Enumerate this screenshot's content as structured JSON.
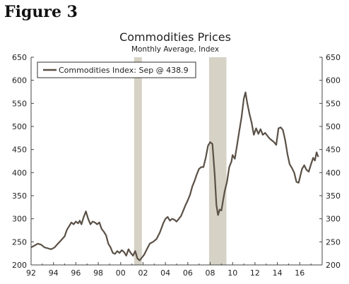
{
  "figure_label": "Figure 3",
  "chart_data": {
    "type": "line",
    "title": "Commodities Prices",
    "subtitle": "Monthly Average, Index",
    "xlabel": "",
    "ylabel": "",
    "xlim": [
      1992,
      2018
    ],
    "ylim": [
      200,
      650
    ],
    "y_ticks": [
      200,
      250,
      300,
      350,
      400,
      450,
      500,
      550,
      600,
      650
    ],
    "x_ticks": [
      {
        "year": 1992,
        "label": "92"
      },
      {
        "year": 1994,
        "label": "94"
      },
      {
        "year": 1996,
        "label": "96"
      },
      {
        "year": 1998,
        "label": "98"
      },
      {
        "year": 2000,
        "label": "00"
      },
      {
        "year": 2002,
        "label": "02"
      },
      {
        "year": 2004,
        "label": "04"
      },
      {
        "year": 2006,
        "label": "06"
      },
      {
        "year": 2008,
        "label": "08"
      },
      {
        "year": 2010,
        "label": "10"
      },
      {
        "year": 2012,
        "label": "12"
      },
      {
        "year": 2014,
        "label": "14"
      },
      {
        "year": 2016,
        "label": "16"
      }
    ],
    "dual_y_axis": true,
    "grid": false,
    "legend_position": "top-left",
    "line_color": "#5a5046",
    "recession_color": "#d6d2c6",
    "recessions": [
      [
        2001.2,
        2001.9
      ],
      [
        2007.9,
        2009.45
      ]
    ],
    "series": [
      {
        "name": "Commodities Index: Sep @ 438.9",
        "x": [
          1992.0,
          1992.3,
          1992.6,
          1992.9,
          1993.2,
          1993.5,
          1993.8,
          1994.1,
          1994.4,
          1994.7,
          1995.0,
          1995.2,
          1995.4,
          1995.6,
          1995.8,
          1996.0,
          1996.2,
          1996.35,
          1996.5,
          1996.7,
          1996.9,
          1997.1,
          1997.3,
          1997.5,
          1997.7,
          1997.9,
          1998.1,
          1998.3,
          1998.5,
          1998.7,
          1998.9,
          1999.1,
          1999.3,
          1999.5,
          1999.7,
          1999.9,
          2000.1,
          2000.3,
          2000.5,
          2000.7,
          2000.9,
          2001.1,
          2001.3,
          2001.5,
          2001.7,
          2001.9,
          2002.1,
          2002.3,
          2002.6,
          2002.9,
          2003.2,
          2003.5,
          2003.8,
          2004.0,
          2004.2,
          2004.4,
          2004.6,
          2004.8,
          2005.0,
          2005.2,
          2005.4,
          2005.6,
          2005.8,
          2006.0,
          2006.2,
          2006.4,
          2006.6,
          2006.8,
          2007.0,
          2007.2,
          2007.4,
          2007.6,
          2007.8,
          2008.0,
          2008.2,
          2008.4,
          2008.55,
          2008.7,
          2008.85,
          2009.0,
          2009.15,
          2009.3,
          2009.5,
          2009.7,
          2009.9,
          2010.0,
          2010.2,
          2010.4,
          2010.6,
          2010.8,
          2011.0,
          2011.15,
          2011.3,
          2011.5,
          2011.7,
          2011.9,
          2012.1,
          2012.3,
          2012.5,
          2012.7,
          2012.9,
          2013.1,
          2013.3,
          2013.5,
          2013.7,
          2013.9,
          2014.1,
          2014.3,
          2014.5,
          2014.7,
          2014.9,
          2015.1,
          2015.3,
          2015.5,
          2015.7,
          2015.9,
          2016.0,
          2016.2,
          2016.4,
          2016.6,
          2016.8,
          2017.0,
          2017.2,
          2017.35,
          2017.5,
          2017.65
        ],
        "values": [
          238,
          242,
          246,
          244,
          238,
          236,
          234,
          238,
          246,
          254,
          262,
          276,
          284,
          292,
          288,
          294,
          290,
          296,
          288,
          304,
          316,
          300,
          288,
          294,
          292,
          288,
          292,
          278,
          272,
          264,
          246,
          238,
          226,
          224,
          230,
          226,
          232,
          228,
          220,
          234,
          226,
          220,
          230,
          214,
          210,
          216,
          222,
          232,
          246,
          250,
          256,
          270,
          290,
          300,
          304,
          296,
          300,
          298,
          294,
          300,
          306,
          318,
          330,
          340,
          352,
          370,
          382,
          396,
          408,
          412,
          412,
          432,
          458,
          466,
          462,
          396,
          330,
          308,
          320,
          318,
          340,
          360,
          380,
          412,
          424,
          438,
          430,
          460,
          490,
          520,
          560,
          574,
          552,
          528,
          508,
          482,
          496,
          484,
          494,
          482,
          486,
          480,
          474,
          470,
          466,
          460,
          496,
          498,
          492,
          470,
          440,
          418,
          410,
          400,
          380,
          378,
          388,
          408,
          416,
          406,
          402,
          418,
          432,
          426,
          444,
          434
        ]
      }
    ]
  }
}
